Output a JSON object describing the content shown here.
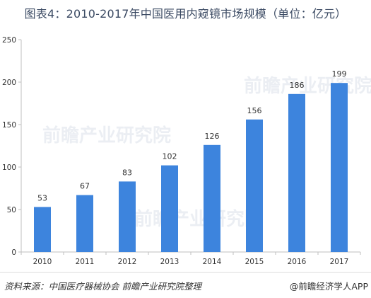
{
  "header": {
    "title": "图表4：2010-2017年中国医用内窥镜市场规模（单位：亿元）"
  },
  "footer": {
    "source": "资料来源：中国医疗器械协会 前瞻产业研究院整理",
    "brand": "@前瞻经济学人APP"
  },
  "watermark": {
    "text": "前瞻产业研究院"
  },
  "colors": {
    "bar": "#3d84dd",
    "axis": "#bfbfbf",
    "text": "#333333"
  },
  "chart_data": {
    "type": "bar",
    "categories": [
      "2010",
      "2011",
      "2012",
      "2013",
      "2014",
      "2015",
      "2016",
      "2017"
    ],
    "values": [
      53,
      67,
      83,
      102,
      126,
      156,
      186,
      199
    ],
    "ylim": [
      0,
      250
    ],
    "yticks": [
      0,
      50,
      100,
      150,
      200,
      250
    ],
    "grid": false,
    "legend": "none"
  }
}
